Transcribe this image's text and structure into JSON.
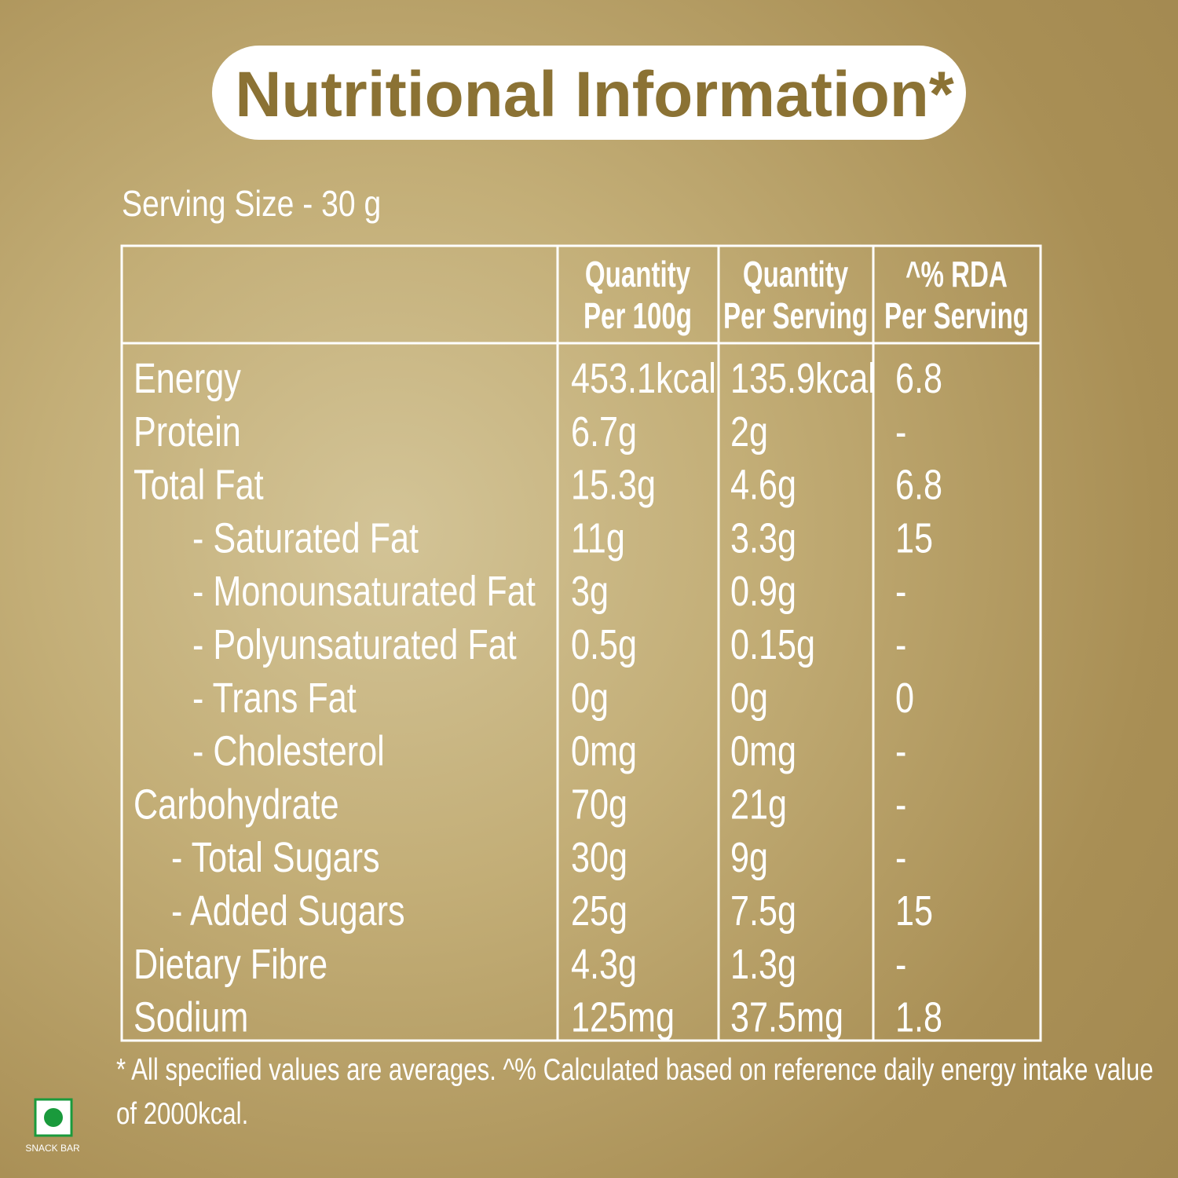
{
  "title": "Nutritional Information*",
  "serving_size": "Serving Size - 30 g",
  "table": {
    "header": [
      [],
      [
        "Quantity",
        "Per 100g"
      ],
      [
        "Quantity",
        "Per Serving"
      ],
      [
        "^% RDA",
        "Per Serving"
      ]
    ],
    "rows": [
      [
        "Energy",
        "453.1kcal",
        "135.9kcal",
        "6.8"
      ],
      [
        "Protein",
        "6.7g",
        "2g",
        "-"
      ],
      [
        "Total Fat",
        "15.3g",
        "4.6g",
        "6.8"
      ],
      [
        "- Saturated Fat",
        "11g",
        "3.3g",
        "15"
      ],
      [
        "- Monounsaturated Fat",
        "3g",
        "0.9g",
        "-"
      ],
      [
        "- Polyunsaturated Fat",
        "0.5g",
        "0.15g",
        "-"
      ],
      [
        "- Trans Fat",
        "0g",
        "0g",
        "0"
      ],
      [
        "- Cholesterol",
        "0mg",
        "0mg",
        "-"
      ],
      [
        "Carbohydrate",
        "70g",
        "21g",
        "-"
      ],
      [
        "- Total Sugars",
        "30g",
        "9g",
        "-"
      ],
      [
        "- Added Sugars",
        "25g",
        "7.5g",
        "15"
      ],
      [
        "Dietary Fibre",
        "4.3g",
        "1.3g",
        "-"
      ],
      [
        "Sodium",
        "125mg",
        "37.5mg",
        "1.8"
      ]
    ]
  },
  "footnote": "* All specified values are averages. ^% Calculated based on reference daily energy intake value of 2000kcal.",
  "badge": {
    "label": "SNACK BAR"
  }
}
